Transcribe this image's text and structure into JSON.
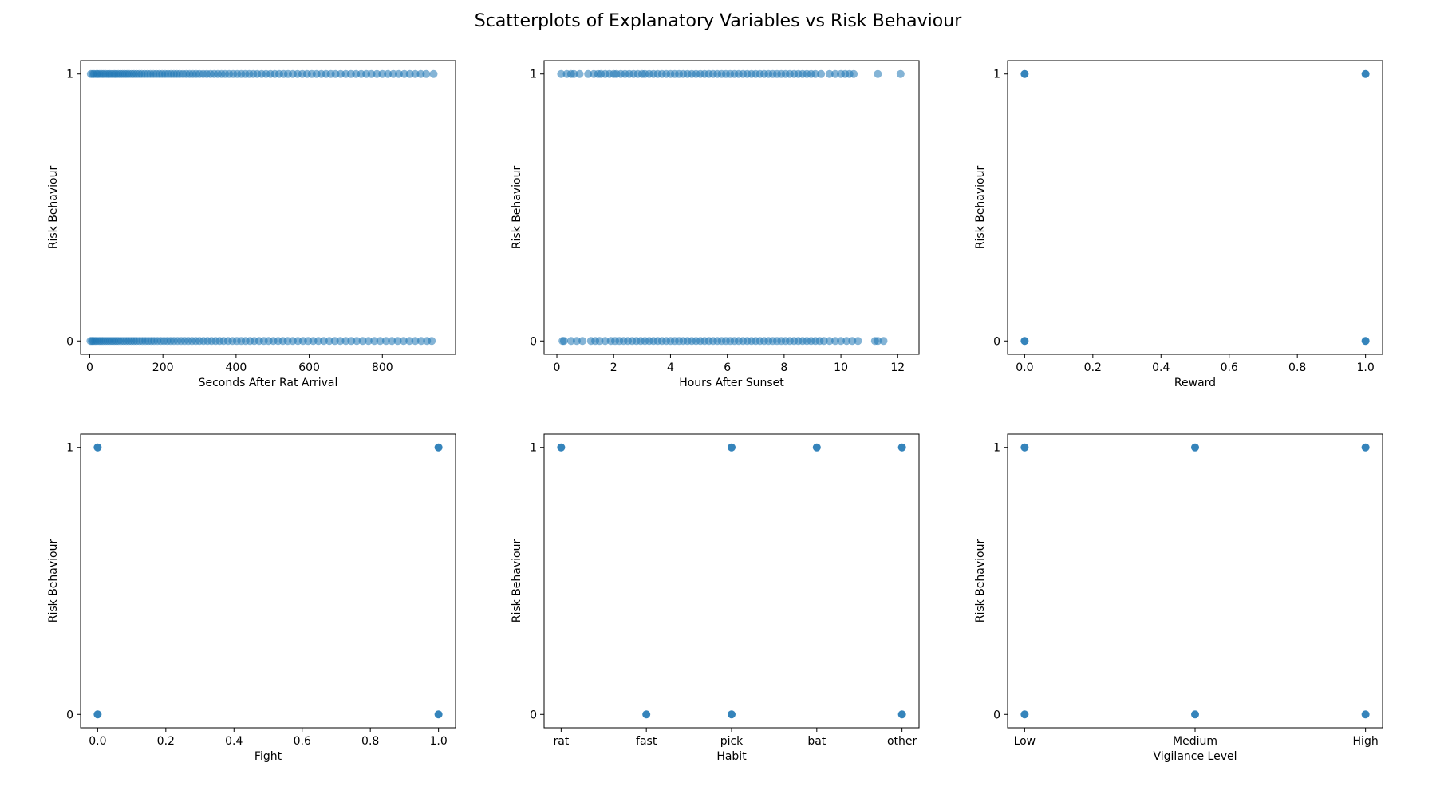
{
  "figure": {
    "title": "Scatterplots of Explanatory Variables vs Risk Behaviour",
    "point_color": "#1f77b4",
    "point_alpha": 0.55
  },
  "chart_data": [
    {
      "type": "scatter",
      "xlabel": "Seconds After Rat Arrival",
      "ylabel": "Risk Behaviour",
      "xlim": [
        -25,
        1000
      ],
      "ylim": [
        -0.05,
        1.05
      ],
      "x_ticks": [
        0,
        200,
        400,
        600,
        800
      ],
      "y_ticks": [
        0,
        1
      ],
      "grid": false,
      "series": [
        {
          "y": 1,
          "x": [
            3,
            8,
            12,
            18,
            22,
            27,
            33,
            38,
            44,
            50,
            55,
            61,
            67,
            72,
            78,
            84,
            90,
            96,
            102,
            108,
            115,
            121,
            128,
            135,
            142,
            150,
            158,
            166,
            174,
            182,
            190,
            198,
            206,
            214,
            222,
            230,
            238,
            246,
            255,
            264,
            273,
            282,
            291,
            300,
            310,
            320,
            330,
            340,
            350,
            360,
            370,
            381,
            392,
            403,
            414,
            425,
            436,
            447,
            458,
            470,
            482,
            494,
            506,
            518,
            530,
            542,
            555,
            568,
            581,
            594,
            607,
            620,
            633,
            646,
            659,
            672,
            686,
            700,
            714,
            728,
            742,
            756,
            770,
            785,
            800,
            815,
            830,
            845,
            860,
            875,
            890,
            905,
            920,
            940
          ]
        },
        {
          "y": 0,
          "x": [
            2,
            6,
            10,
            15,
            20,
            26,
            31,
            37,
            43,
            49,
            55,
            61,
            67,
            73,
            79,
            86,
            93,
            100,
            107,
            114,
            121,
            128,
            136,
            144,
            152,
            160,
            168,
            176,
            185,
            194,
            203,
            212,
            221,
            230,
            240,
            250,
            260,
            270,
            280,
            290,
            300,
            311,
            322,
            333,
            344,
            355,
            366,
            378,
            390,
            402,
            414,
            426,
            438,
            450,
            463,
            476,
            489,
            502,
            515,
            528,
            541,
            555,
            569,
            583,
            597,
            611,
            625,
            640,
            655,
            670,
            685,
            700,
            715,
            730,
            746,
            762,
            778,
            794,
            810,
            826,
            842,
            858,
            874,
            890,
            906,
            922,
            935
          ]
        }
      ]
    },
    {
      "type": "scatter",
      "xlabel": "Hours After Sunset",
      "ylabel": "Risk Behaviour",
      "xlim": [
        -0.45,
        12.75
      ],
      "ylim": [
        -0.05,
        1.05
      ],
      "x_ticks": [
        0,
        2,
        4,
        6,
        8,
        10,
        12
      ],
      "y_ticks": [
        0,
        1
      ],
      "grid": false,
      "series": [
        {
          "y": 1,
          "x": [
            0.15,
            0.35,
            0.5,
            0.6,
            0.8,
            1.1,
            1.3,
            1.45,
            1.55,
            1.7,
            1.85,
            2.0,
            2.1,
            2.25,
            2.4,
            2.55,
            2.7,
            2.85,
            3.0,
            3.1,
            3.25,
            3.4,
            3.55,
            3.7,
            3.85,
            4.0,
            4.15,
            4.3,
            4.45,
            4.6,
            4.75,
            4.9,
            5.05,
            5.2,
            5.35,
            5.5,
            5.65,
            5.8,
            5.95,
            6.1,
            6.25,
            6.4,
            6.55,
            6.7,
            6.85,
            7.0,
            7.15,
            7.3,
            7.45,
            7.6,
            7.75,
            7.9,
            8.05,
            8.2,
            8.35,
            8.5,
            8.65,
            8.8,
            8.95,
            9.1,
            9.3,
            9.6,
            9.8,
            10.0,
            10.15,
            10.3,
            10.45,
            11.3,
            12.1
          ]
        },
        {
          "y": 0,
          "x": [
            0.2,
            0.25,
            0.5,
            0.7,
            0.9,
            1.2,
            1.35,
            1.5,
            1.7,
            1.9,
            2.05,
            2.2,
            2.35,
            2.5,
            2.65,
            2.8,
            2.95,
            3.1,
            3.25,
            3.4,
            3.55,
            3.7,
            3.85,
            4.0,
            4.15,
            4.3,
            4.45,
            4.6,
            4.75,
            4.9,
            5.05,
            5.2,
            5.35,
            5.5,
            5.65,
            5.8,
            5.95,
            6.1,
            6.25,
            6.4,
            6.55,
            6.7,
            6.85,
            7.0,
            7.15,
            7.3,
            7.45,
            7.6,
            7.75,
            7.9,
            8.05,
            8.2,
            8.35,
            8.5,
            8.65,
            8.8,
            8.95,
            9.1,
            9.25,
            9.4,
            9.6,
            9.8,
            10.0,
            10.2,
            10.4,
            10.6,
            11.2,
            11.3,
            11.5
          ]
        }
      ]
    },
    {
      "type": "scatter",
      "xlabel": "Reward",
      "ylabel": "Risk Behaviour",
      "xlim": [
        -0.05,
        1.05
      ],
      "ylim": [
        -0.05,
        1.05
      ],
      "x_ticks": [
        0.0,
        0.2,
        0.4,
        0.6,
        0.8,
        1.0
      ],
      "y_ticks": [
        0,
        1
      ],
      "grid": false,
      "points": [
        [
          0,
          0
        ],
        [
          0,
          1
        ],
        [
          1,
          0
        ],
        [
          1,
          1
        ]
      ]
    },
    {
      "type": "scatter",
      "xlabel": "Fight",
      "ylabel": "Risk Behaviour",
      "xlim": [
        -0.05,
        1.05
      ],
      "ylim": [
        -0.05,
        1.05
      ],
      "x_ticks": [
        0.0,
        0.2,
        0.4,
        0.6,
        0.8,
        1.0
      ],
      "y_ticks": [
        0,
        1
      ],
      "grid": false,
      "points": [
        [
          0,
          0
        ],
        [
          0,
          1
        ],
        [
          1,
          0
        ],
        [
          1,
          1
        ]
      ]
    },
    {
      "type": "scatter",
      "xlabel": "Habit",
      "ylabel": "Risk Behaviour",
      "categories": [
        "rat",
        "fast",
        "pick",
        "bat",
        "other"
      ],
      "ylim": [
        -0.05,
        1.05
      ],
      "y_ticks": [
        0,
        1
      ],
      "grid": false,
      "points": [
        [
          "rat",
          1
        ],
        [
          "fast",
          0
        ],
        [
          "pick",
          0
        ],
        [
          "pick",
          1
        ],
        [
          "bat",
          1
        ],
        [
          "other",
          0
        ],
        [
          "other",
          1
        ]
      ]
    },
    {
      "type": "scatter",
      "xlabel": "Vigilance Level",
      "ylabel": "Risk Behaviour",
      "categories": [
        "Low",
        "Medium",
        "High"
      ],
      "ylim": [
        -0.05,
        1.05
      ],
      "y_ticks": [
        0,
        1
      ],
      "grid": false,
      "points": [
        [
          "Low",
          0
        ],
        [
          "Low",
          1
        ],
        [
          "Medium",
          0
        ],
        [
          "Medium",
          1
        ],
        [
          "High",
          0
        ],
        [
          "High",
          1
        ]
      ]
    }
  ]
}
